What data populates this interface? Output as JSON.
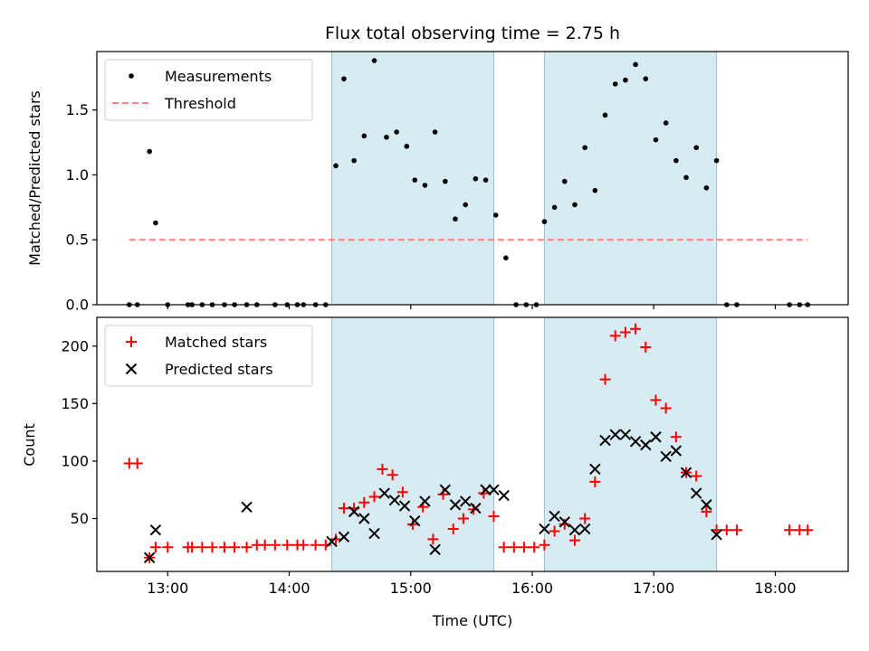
{
  "chart_data": [
    {
      "type": "scatter",
      "title": "Flux total observing time = 2.75 h",
      "xlabel": "",
      "ylabel": "Matched/Predicted stars",
      "xlim": [
        "12:25",
        "18:36"
      ],
      "ylim": [
        0,
        1.95
      ],
      "yticks": [
        "0.0",
        "0.5",
        "1.0",
        "1.5"
      ],
      "ytick_values": [
        0,
        0.5,
        1.0,
        1.5
      ],
      "shaded_intervals": [
        [
          "14:21",
          "15:41"
        ],
        [
          "16:06",
          "17:31"
        ]
      ],
      "legend_position": "upper-left",
      "series": [
        {
          "name": "Measurements",
          "marker": "dot",
          "color": "#000000",
          "points": [
            [
              "12:41",
              0
            ],
            [
              "12:45",
              0
            ],
            [
              "12:51",
              1.18
            ],
            [
              "12:54",
              0.63
            ],
            [
              "13:00",
              0
            ],
            [
              "13:10",
              0
            ],
            [
              "13:12",
              0
            ],
            [
              "13:17",
              0
            ],
            [
              "13:22",
              0
            ],
            [
              "13:28",
              0
            ],
            [
              "13:33",
              0
            ],
            [
              "13:39",
              0
            ],
            [
              "13:44",
              0
            ],
            [
              "13:53",
              0
            ],
            [
              "13:59",
              0
            ],
            [
              "14:04",
              0
            ],
            [
              "14:07",
              0
            ],
            [
              "14:13",
              0
            ],
            [
              "14:18",
              0
            ],
            [
              "14:23",
              1.07
            ],
            [
              "14:27",
              1.74
            ],
            [
              "14:32",
              1.11
            ],
            [
              "14:37",
              1.3
            ],
            [
              "14:42",
              1.88
            ],
            [
              "14:48",
              1.29
            ],
            [
              "14:53",
              1.33
            ],
            [
              "14:58",
              1.22
            ],
            [
              "15:02",
              0.96
            ],
            [
              "15:07",
              0.92
            ],
            [
              "15:12",
              1.33
            ],
            [
              "15:17",
              0.95
            ],
            [
              "15:22",
              0.66
            ],
            [
              "15:27",
              0.77
            ],
            [
              "15:32",
              0.97
            ],
            [
              "15:37",
              0.96
            ],
            [
              "15:42",
              0.69
            ],
            [
              "15:47",
              0.36
            ],
            [
              "15:52",
              0
            ],
            [
              "15:57",
              0
            ],
            [
              "16:02",
              0
            ],
            [
              "16:06",
              0.64
            ],
            [
              "16:11",
              0.75
            ],
            [
              "16:16",
              0.95
            ],
            [
              "16:21",
              0.77
            ],
            [
              "16:26",
              1.21
            ],
            [
              "16:31",
              0.88
            ],
            [
              "16:36",
              1.46
            ],
            [
              "16:41",
              1.7
            ],
            [
              "16:46",
              1.73
            ],
            [
              "16:51",
              1.85
            ],
            [
              "16:56",
              1.74
            ],
            [
              "17:01",
              1.27
            ],
            [
              "17:06",
              1.4
            ],
            [
              "17:11",
              1.11
            ],
            [
              "17:16",
              0.98
            ],
            [
              "17:21",
              1.21
            ],
            [
              "17:26",
              0.9
            ],
            [
              "17:31",
              1.11
            ],
            [
              "17:36",
              0
            ],
            [
              "17:41",
              0
            ],
            [
              "18:07",
              0
            ],
            [
              "18:12",
              0
            ],
            [
              "18:16",
              0
            ]
          ]
        },
        {
          "name": "Threshold",
          "marker": "dashed-line",
          "color": "#ff7f7f",
          "points": [
            [
              "12:41",
              0.5
            ],
            [
              "18:16",
              0.5
            ]
          ]
        }
      ]
    },
    {
      "type": "scatter",
      "title": "",
      "xlabel": "Time (UTC)",
      "ylabel": "Count",
      "xlim": [
        "12:25",
        "18:36"
      ],
      "ylim": [
        4,
        225
      ],
      "yticks": [
        "50",
        "100",
        "150",
        "200"
      ],
      "ytick_values": [
        50,
        100,
        150,
        200
      ],
      "xticks": [
        "13:00",
        "14:00",
        "15:00",
        "16:00",
        "17:00",
        "18:00"
      ],
      "shaded_intervals": [
        [
          "14:21",
          "15:41"
        ],
        [
          "16:06",
          "17:31"
        ]
      ],
      "legend_position": "upper-left",
      "series": [
        {
          "name": "Matched stars",
          "marker": "plus",
          "color": "#ff0000",
          "points": [
            [
              "12:41",
              98
            ],
            [
              "12:45",
              98
            ],
            [
              "12:51",
              16
            ],
            [
              "12:54",
              25
            ],
            [
              "13:00",
              25
            ],
            [
              "13:10",
              25
            ],
            [
              "13:12",
              25
            ],
            [
              "13:17",
              25
            ],
            [
              "13:22",
              25
            ],
            [
              "13:28",
              25
            ],
            [
              "13:33",
              25
            ],
            [
              "13:39",
              25
            ],
            [
              "13:44",
              27
            ],
            [
              "13:48",
              27
            ],
            [
              "13:53",
              27
            ],
            [
              "13:59",
              27
            ],
            [
              "14:04",
              27
            ],
            [
              "14:07",
              27
            ],
            [
              "14:13",
              27
            ],
            [
              "14:18",
              27
            ],
            [
              "14:23",
              32
            ],
            [
              "14:27",
              59
            ],
            [
              "14:32",
              59
            ],
            [
              "14:37",
              64
            ],
            [
              "14:42",
              69
            ],
            [
              "14:46",
              93
            ],
            [
              "14:51",
              88
            ],
            [
              "14:56",
              73
            ],
            [
              "15:01",
              45
            ],
            [
              "15:06",
              60
            ],
            [
              "15:11",
              32
            ],
            [
              "15:16",
              71
            ],
            [
              "15:21",
              41
            ],
            [
              "15:26",
              50
            ],
            [
              "15:31",
              58
            ],
            [
              "15:36",
              72
            ],
            [
              "15:41",
              52
            ],
            [
              "15:46",
              25
            ],
            [
              "15:51",
              25
            ],
            [
              "15:56",
              25
            ],
            [
              "16:01",
              25
            ],
            [
              "16:06",
              27
            ],
            [
              "16:11",
              39
            ],
            [
              "16:16",
              45
            ],
            [
              "16:21",
              31
            ],
            [
              "16:26",
              50
            ],
            [
              "16:31",
              82
            ],
            [
              "16:36",
              171
            ],
            [
              "16:41",
              209
            ],
            [
              "16:46",
              212
            ],
            [
              "16:51",
              215
            ],
            [
              "16:56",
              199
            ],
            [
              "17:01",
              153
            ],
            [
              "17:06",
              146
            ],
            [
              "17:11",
              121
            ],
            [
              "17:16",
              90
            ],
            [
              "17:21",
              87
            ],
            [
              "17:26",
              56
            ],
            [
              "17:31",
              40
            ],
            [
              "17:36",
              40
            ],
            [
              "17:41",
              40
            ],
            [
              "18:07",
              40
            ],
            [
              "18:12",
              40
            ],
            [
              "18:16",
              40
            ]
          ]
        },
        {
          "name": "Predicted stars",
          "marker": "x",
          "color": "#000000",
          "points": [
            [
              "12:51",
              16
            ],
            [
              "12:54",
              40
            ],
            [
              "13:39",
              60
            ],
            [
              "14:21",
              30
            ],
            [
              "14:27",
              34
            ],
            [
              "14:32",
              56
            ],
            [
              "14:37",
              50
            ],
            [
              "14:42",
              37
            ],
            [
              "14:47",
              72
            ],
            [
              "14:52",
              66
            ],
            [
              "14:57",
              61
            ],
            [
              "15:02",
              48
            ],
            [
              "15:07",
              65
            ],
            [
              "15:12",
              23
            ],
            [
              "15:17",
              75
            ],
            [
              "15:22",
              62
            ],
            [
              "15:27",
              65
            ],
            [
              "15:32",
              59
            ],
            [
              "15:37",
              75
            ],
            [
              "15:41",
              75
            ],
            [
              "15:46",
              70
            ],
            [
              "16:06",
              41
            ],
            [
              "16:11",
              52
            ],
            [
              "16:16",
              47
            ],
            [
              "16:21",
              40
            ],
            [
              "16:26",
              41
            ],
            [
              "16:31",
              93
            ],
            [
              "16:36",
              118
            ],
            [
              "16:41",
              123
            ],
            [
              "16:46",
              123
            ],
            [
              "16:51",
              117
            ],
            [
              "16:56",
              114
            ],
            [
              "17:01",
              121
            ],
            [
              "17:06",
              104
            ],
            [
              "17:11",
              109
            ],
            [
              "17:16",
              90
            ],
            [
              "17:21",
              72
            ],
            [
              "17:26",
              62
            ],
            [
              "17:31",
              36
            ]
          ]
        }
      ]
    }
  ]
}
